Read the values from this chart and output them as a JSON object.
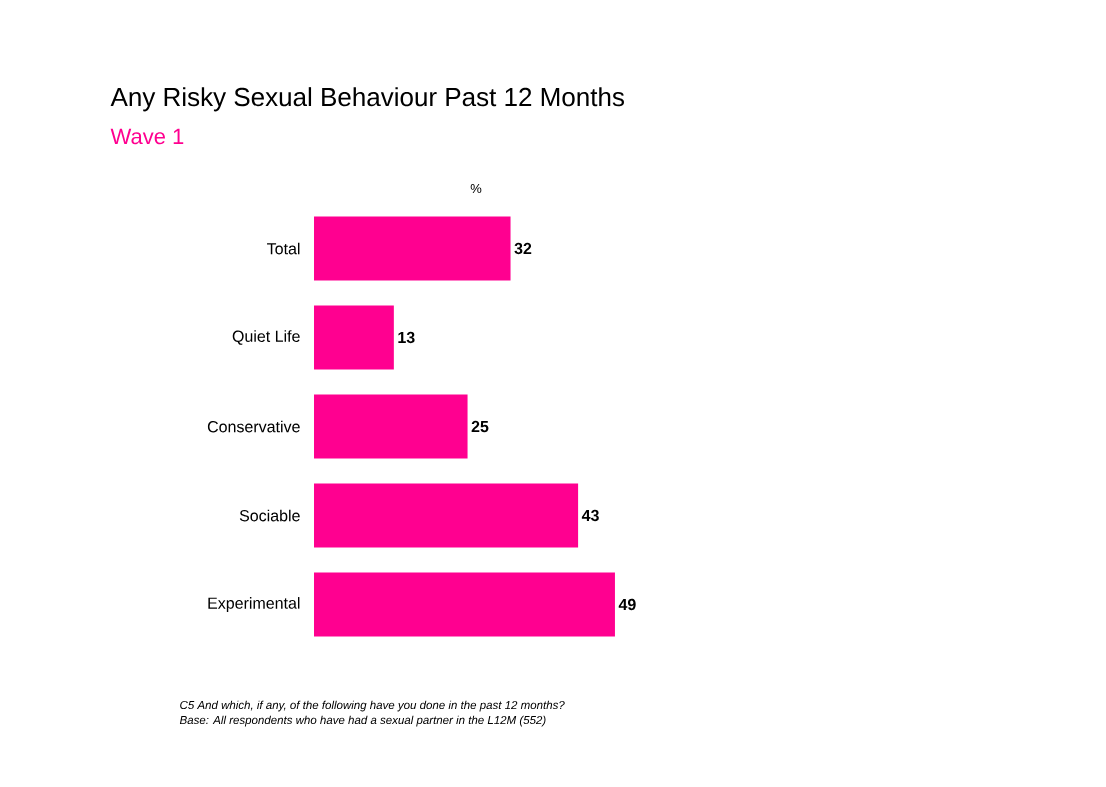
{
  "chart_data": {
    "type": "bar",
    "orientation": "horizontal",
    "title": "Any Risky Sexual Behaviour Past 12 Months",
    "subtitle": "Wave 1",
    "categories": [
      "Total",
      "Quiet Life",
      "Conservative",
      "Sociable",
      "Experimental"
    ],
    "values": [
      32,
      13,
      25,
      43,
      49
    ],
    "color": "#ff0090",
    "data_labels": true,
    "annotations": [
      "%",
      "C5 And which, if any, of the following have you done in the past 12 months?",
      "Base:  All respondents who have had a sexual partner in the L12M (552)"
    ]
  }
}
